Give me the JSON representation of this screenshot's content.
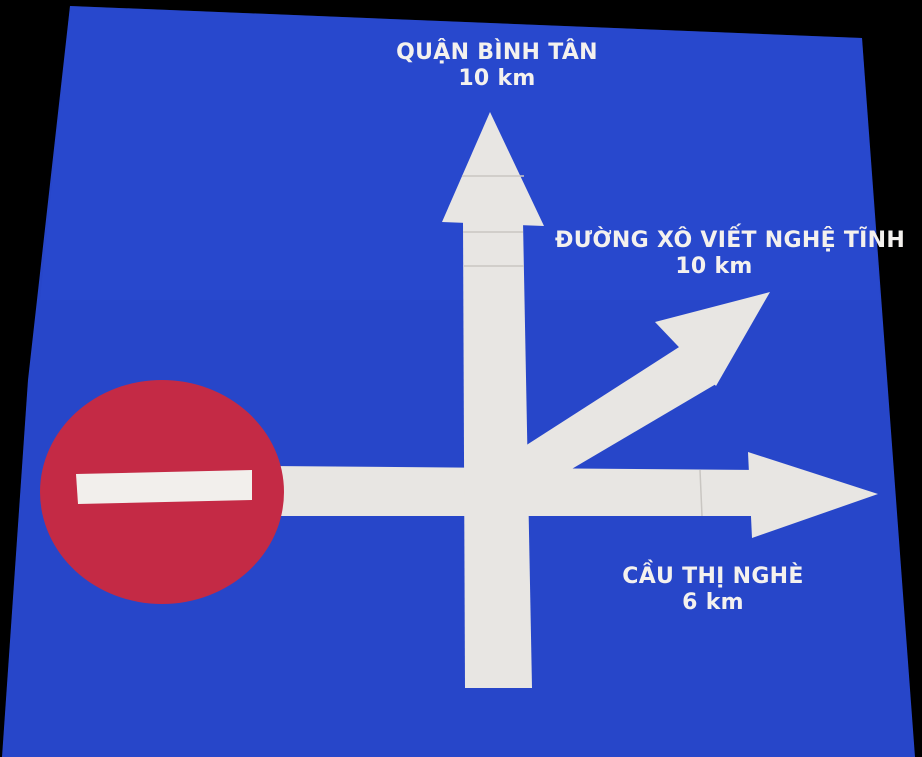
{
  "sign": {
    "colors": {
      "background": "#2746c9",
      "arrow": "#e8e6e3",
      "no_entry_disc": "#c42a45",
      "no_entry_bar": "#f2efec",
      "text": "#f4f1ee"
    },
    "destinations": {
      "north": {
        "name": "QUẬN BÌNH TÂN",
        "distance": "10 km"
      },
      "northeast": {
        "name": "ĐƯỜNG XÔ VIẾT NGHỆ TĨNH",
        "distance": "10 km"
      },
      "east": {
        "name": "CẦU THỊ NGHÈ",
        "distance": "6 km"
      }
    },
    "symbols": {
      "no_entry": "no-entry-icon",
      "arrows": [
        "arrow-north-icon",
        "arrow-northeast-icon",
        "arrow-east-icon"
      ]
    }
  }
}
